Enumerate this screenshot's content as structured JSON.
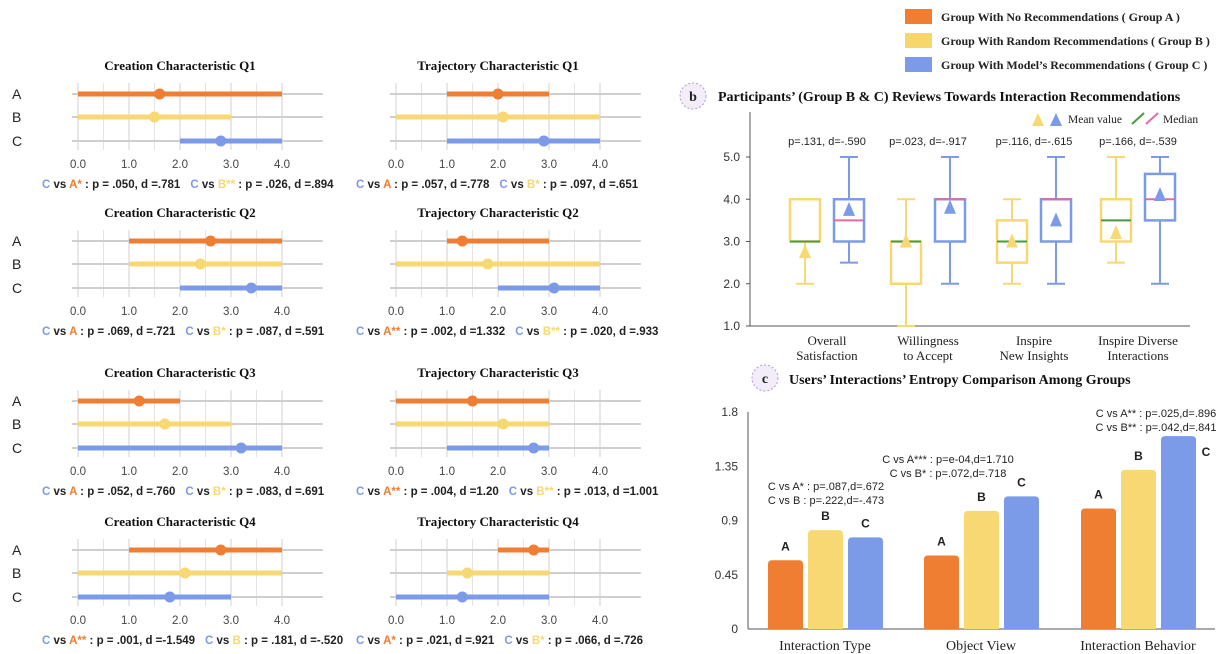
{
  "legend": {
    "items": [
      {
        "label": "Group With No Recommendations ( Group A )",
        "color": "#ef7d32"
      },
      {
        "label": "Group With Random Recommendations ( Group B )",
        "color": "#f7d66b"
      },
      {
        "label": "Group With Model’s Recommendations ( Group C )",
        "color": "#7b9ae8"
      }
    ]
  },
  "colors": {
    "A": "#ef7d32",
    "B": "#f8d873",
    "C": "#7b9ae8",
    "median_green": "#4a9a3e",
    "median_pink": "#e56aa3"
  },
  "chart_data": [
    {
      "type": "range",
      "title": "Creation Characteristic Q1",
      "rows": [
        "A",
        "B",
        "C"
      ],
      "xticks": [
        "0.0",
        "1.0",
        "2.0",
        "3.0",
        "4.0"
      ],
      "xlim": [
        0,
        4
      ],
      "series": [
        {
          "name": "A",
          "min": 0,
          "max": 4,
          "mean": 1.6
        },
        {
          "name": "B",
          "min": 0,
          "max": 3,
          "mean": 1.5
        },
        {
          "name": "C",
          "min": 2,
          "max": 4,
          "mean": 2.8
        }
      ],
      "stats": [
        {
          "c": "C",
          "vs": " vs ",
          "g": "A*",
          "rest": " : p = .050, d =.781"
        },
        {
          "c": "C",
          "vs": " vs ",
          "g": "B**",
          "rest": " : p = .026, d =.894"
        }
      ]
    },
    {
      "type": "range",
      "title": "Trajectory Characteristic Q1",
      "rows": [
        "A",
        "B",
        "C"
      ],
      "xticks": [
        "0.0",
        "1.0",
        "2.0",
        "3.0",
        "4.0"
      ],
      "xlim": [
        0,
        4
      ],
      "series": [
        {
          "name": "A",
          "min": 1,
          "max": 3,
          "mean": 2.0
        },
        {
          "name": "B",
          "min": 0,
          "max": 4,
          "mean": 2.1
        },
        {
          "name": "C",
          "min": 1,
          "max": 4,
          "mean": 2.9
        }
      ],
      "stats": [
        {
          "c": "C",
          "vs": " vs ",
          "g": "A",
          "rest": " : p = .057, d =.778"
        },
        {
          "c": "C",
          "vs": " vs ",
          "g": "B*",
          "rest": " : p = .097, d =.651"
        }
      ]
    },
    {
      "type": "range",
      "title": "Creation Characteristic Q2",
      "rows": [
        "A",
        "B",
        "C"
      ],
      "xticks": [
        "0.0",
        "1.0",
        "2.0",
        "3.0",
        "4.0"
      ],
      "xlim": [
        0,
        4
      ],
      "series": [
        {
          "name": "A",
          "min": 1,
          "max": 4,
          "mean": 2.6
        },
        {
          "name": "B",
          "min": 1,
          "max": 4,
          "mean": 2.4
        },
        {
          "name": "C",
          "min": 2,
          "max": 4,
          "mean": 3.4
        }
      ],
      "stats": [
        {
          "c": "C",
          "vs": " vs ",
          "g": "A",
          "rest": " : p = .069, d =.721"
        },
        {
          "c": "C",
          "vs": " vs ",
          "g": "B*",
          "rest": " : p = .087, d =.591"
        }
      ]
    },
    {
      "type": "range",
      "title": "Trajectory Characteristic Q2",
      "rows": [
        "A",
        "B",
        "C"
      ],
      "xticks": [
        "0.0",
        "1.0",
        "2.0",
        "3.0",
        "4.0"
      ],
      "xlim": [
        0,
        4
      ],
      "series": [
        {
          "name": "A",
          "min": 1,
          "max": 3,
          "mean": 1.3
        },
        {
          "name": "B",
          "min": 0,
          "max": 4,
          "mean": 1.8
        },
        {
          "name": "C",
          "min": 2,
          "max": 4,
          "mean": 3.1
        }
      ],
      "stats": [
        {
          "c": "C",
          "vs": " vs ",
          "g": "A**",
          "rest": " : p = .002, d =1.332"
        },
        {
          "c": "C",
          "vs": " vs ",
          "g": "B**",
          "rest": " : p = .020, d =.933"
        }
      ]
    },
    {
      "type": "range",
      "title": "Creation Characteristic Q3",
      "rows": [
        "A",
        "B",
        "C"
      ],
      "xticks": [
        "0.0",
        "1.0",
        "2.0",
        "3.0",
        "4.0"
      ],
      "xlim": [
        0,
        4
      ],
      "series": [
        {
          "name": "A",
          "min": 0,
          "max": 2,
          "mean": 1.2
        },
        {
          "name": "B",
          "min": 0,
          "max": 3,
          "mean": 1.7
        },
        {
          "name": "C",
          "min": 0,
          "max": 4,
          "mean": 3.2
        }
      ],
      "stats": [
        {
          "c": "C",
          "vs": " vs ",
          "g": "A",
          "rest": " : p = .052, d =.760"
        },
        {
          "c": "C",
          "vs": " vs ",
          "g": "B*",
          "rest": " : p = .083, d =.691"
        }
      ]
    },
    {
      "type": "range",
      "title": "Trajectory Characteristic Q3",
      "rows": [
        "A",
        "B",
        "C"
      ],
      "xticks": [
        "0.0",
        "1.0",
        "2.0",
        "3.0",
        "4.0"
      ],
      "xlim": [
        0,
        4
      ],
      "series": [
        {
          "name": "A",
          "min": 0,
          "max": 3,
          "mean": 1.5
        },
        {
          "name": "B",
          "min": 0,
          "max": 3,
          "mean": 2.1
        },
        {
          "name": "C",
          "min": 1,
          "max": 3,
          "mean": 2.7
        }
      ],
      "stats": [
        {
          "c": "C",
          "vs": " vs ",
          "g": "A**",
          "rest": " : p = .004, d =1.20"
        },
        {
          "c": "C",
          "vs": " vs ",
          "g": "B**",
          "rest": " : p = .013, d =1.001"
        }
      ]
    },
    {
      "type": "range",
      "title": "Creation Characteristic Q4",
      "rows": [
        "A",
        "B",
        "C"
      ],
      "xticks": [
        "0.0",
        "1.0",
        "2.0",
        "3.0",
        "4.0"
      ],
      "xlim": [
        0,
        4
      ],
      "series": [
        {
          "name": "A",
          "min": 1,
          "max": 4,
          "mean": 2.8
        },
        {
          "name": "B",
          "min": 0,
          "max": 4,
          "mean": 2.1
        },
        {
          "name": "C",
          "min": 0,
          "max": 3,
          "mean": 1.8
        }
      ],
      "stats": [
        {
          "c": "C",
          "vs": " vs ",
          "g": "A**",
          "rest": " : p = .001, d =-1.549"
        },
        {
          "c": "C",
          "vs": " vs ",
          "g": "B",
          "rest": " : p = .181, d =-.520"
        }
      ]
    },
    {
      "type": "range",
      "title": "Trajectory Characteristic Q4",
      "rows": [
        "A",
        "B",
        "C"
      ],
      "xticks": [
        "0.0",
        "1.0",
        "2.0",
        "3.0",
        "4.0"
      ],
      "xlim": [
        0,
        4
      ],
      "series": [
        {
          "name": "A",
          "min": 2,
          "max": 3,
          "mean": 2.7
        },
        {
          "name": "B",
          "min": 1,
          "max": 3,
          "mean": 1.4
        },
        {
          "name": "C",
          "min": 0,
          "max": 3,
          "mean": 1.3
        }
      ],
      "stats": [
        {
          "c": "C",
          "vs": " vs ",
          "g": "A*",
          "rest": " : p = .021, d =.921"
        },
        {
          "c": "C",
          "vs": " vs ",
          "g": "B*",
          "rest": " : p = .066, d =.726"
        }
      ]
    },
    {
      "type": "box",
      "badge": "b",
      "title": "Participants’ (Group B & C) Reviews Towards Interaction Recommendations",
      "mean_label": "Mean value",
      "median_label": "Median",
      "yticks": [
        "1.0",
        "2.0",
        "3.0",
        "4.0",
        "5.0"
      ],
      "ylim": [
        1,
        5
      ],
      "categories": [
        [
          "Overall",
          "Satisfaction"
        ],
        [
          "Willingness",
          "to Accept"
        ],
        [
          "Inspire",
          "New Insights"
        ],
        [
          "Inspire Diverse",
          "Interactions"
        ]
      ],
      "stats": [
        "p=.131, d=-.590",
        "p=.023, d=-.917",
        "p=.116, d=-.615",
        "p=.166, d=-.539"
      ],
      "series": [
        {
          "name": "B",
          "boxes": [
            {
              "min": 2,
              "q1": 3,
              "median": 3,
              "q3": 4,
              "max": 4,
              "mean": 2.75
            },
            {
              "min": 1,
              "q1": 2,
              "median": 3,
              "q3": 3,
              "max": 4,
              "mean": 3.0
            },
            {
              "min": 2,
              "q1": 2.5,
              "median": 3,
              "q3": 3.5,
              "max": 4,
              "mean": 3.0
            },
            {
              "min": 2.5,
              "q1": 3,
              "median": 3.5,
              "q3": 4,
              "max": 5,
              "mean": 3.2
            }
          ]
        },
        {
          "name": "C",
          "boxes": [
            {
              "min": 2.5,
              "q1": 3,
              "median": 3.5,
              "q3": 4,
              "max": 5,
              "mean": 3.75
            },
            {
              "min": 2,
              "q1": 3,
              "median": 4,
              "q3": 4,
              "max": 5,
              "mean": 3.8
            },
            {
              "min": 2,
              "q1": 3,
              "median": 4,
              "q3": 4,
              "max": 5,
              "mean": 3.5
            },
            {
              "min": 2,
              "q1": 3.5,
              "median": 4,
              "q3": 4.6,
              "max": 5,
              "mean": 4.1
            }
          ]
        }
      ]
    },
    {
      "type": "bar",
      "badge": "c",
      "title": "Users’ Interactions’ Entropy Comparison Among Groups",
      "yticks": [
        "0",
        "0.45",
        "0.9",
        "1.35",
        "1.8"
      ],
      "ylim": [
        0,
        1.8
      ],
      "categories": [
        "Interaction Type",
        "Object View",
        "Interaction Behavior"
      ],
      "series": [
        {
          "name": "A",
          "values": [
            0.57,
            0.61,
            1.0
          ]
        },
        {
          "name": "B",
          "values": [
            0.82,
            0.98,
            1.32
          ]
        },
        {
          "name": "C",
          "values": [
            0.76,
            1.1,
            1.6
          ]
        }
      ],
      "annotations": [
        [
          "C vs A* : p=.087,d=.672",
          "C vs B : p=.222,d=-.473"
        ],
        [
          "C vs A*** : p=e-04,d=1.710",
          "C vs B* : p=.072,d=.718"
        ],
        [
          "C vs A** : p=.025,d=.896",
          "C vs B** : p=.042,d=.841"
        ]
      ]
    }
  ]
}
